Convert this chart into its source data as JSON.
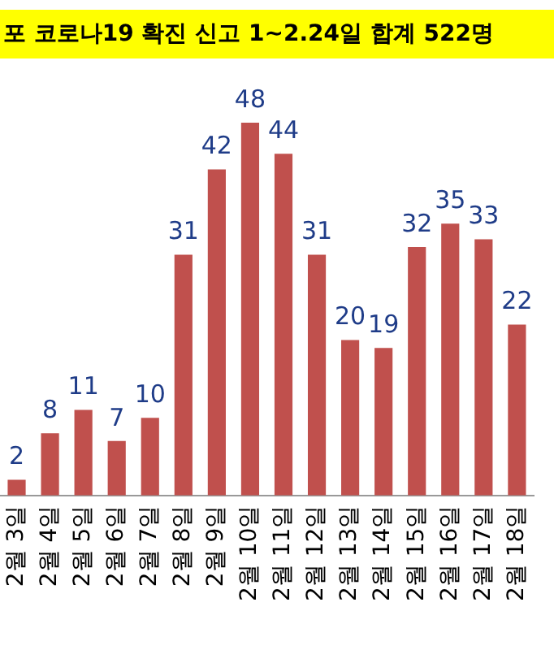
{
  "chart_data": {
    "type": "bar",
    "title": "포 코로나19 확진 신고 1~2.24일 합계 522명",
    "categories": [
      "2월 3일",
      "2월 4일",
      "2월 5일",
      "2월 6일",
      "2월 7일",
      "2월 8일",
      "2월 9일",
      "2월 10일",
      "2월 11일",
      "2월 12일",
      "2월 13일",
      "2월 14일",
      "2월 15일",
      "2월 16일",
      "2월 17일",
      "2월 18일"
    ],
    "values": [
      2,
      8,
      11,
      7,
      10,
      31,
      42,
      48,
      44,
      31,
      20,
      19,
      32,
      35,
      33,
      22
    ],
    "color": "#c0504d",
    "data_labels": true,
    "grid": false,
    "legend": false,
    "tick_labels": "x"
  }
}
